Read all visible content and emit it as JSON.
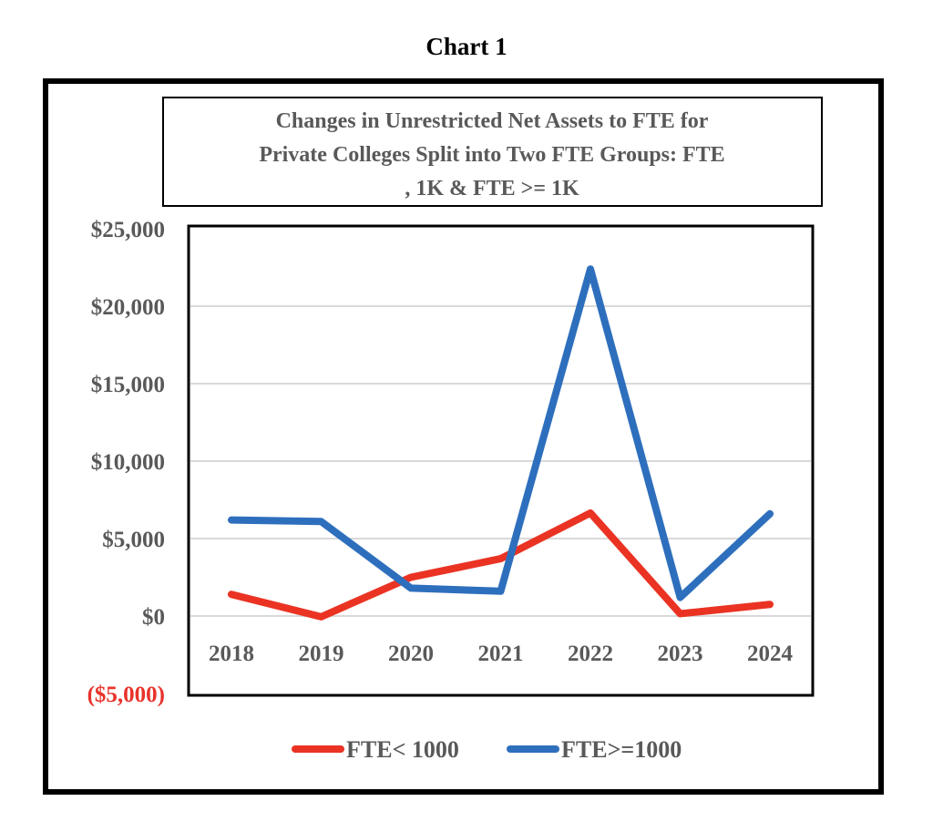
{
  "caption": "Chart 1",
  "chart_data": {
    "type": "line",
    "title_lines": [
      "Changes in Unrestricted Net Assets to FTE for",
      "Private Colleges Split into Two FTE Groups: FTE",
      ", 1K & FTE >= 1K"
    ],
    "categories": [
      "2018",
      "2019",
      "2020",
      "2021",
      "2022",
      "2023",
      "2024"
    ],
    "yticks": [
      {
        "value": 25000,
        "label": "$25,000"
      },
      {
        "value": 20000,
        "label": "$20,000"
      },
      {
        "value": 15000,
        "label": "$15,000"
      },
      {
        "value": 10000,
        "label": "$10,000"
      },
      {
        "value": 5000,
        "label": "$5,000"
      },
      {
        "value": 0,
        "label": "$0"
      },
      {
        "value": -5000,
        "label": "($5,000)",
        "color": "#e8322a"
      }
    ],
    "ylim": [
      -5000,
      25000
    ],
    "grid": true,
    "legend_position": "bottom",
    "series": [
      {
        "name": "FTE< 1000",
        "color": "#ea3323",
        "values": [
          1400,
          -50,
          2500,
          3700,
          6650,
          150,
          750
        ]
      },
      {
        "name": "FTE>=1000",
        "color": "#2e6fbd",
        "values": [
          6200,
          6100,
          1800,
          1600,
          22400,
          1200,
          6600
        ]
      }
    ],
    "xlabel": "",
    "ylabel": ""
  }
}
